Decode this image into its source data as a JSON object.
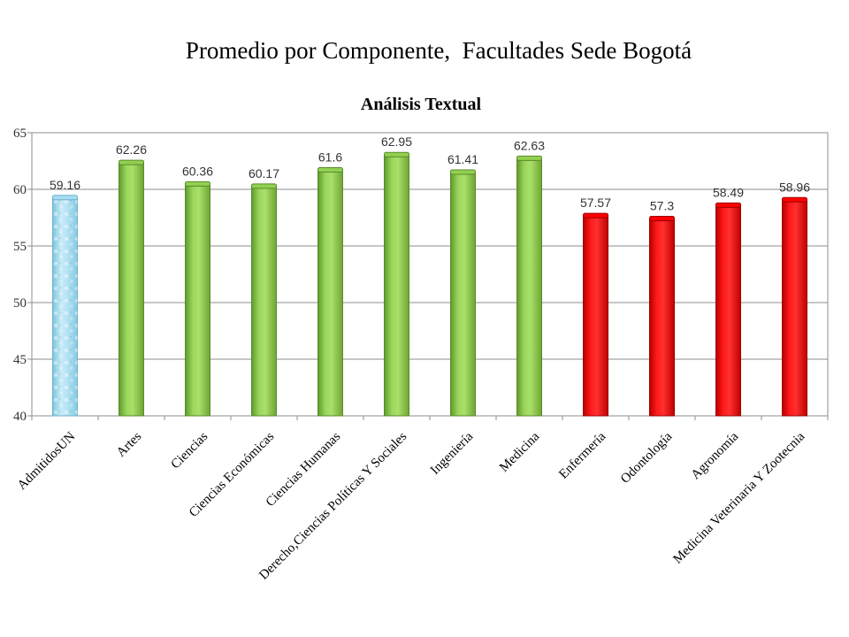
{
  "slide": {
    "title": "Promedio por Componente,  Facultades Sede Bogotá"
  },
  "chart_data": {
    "type": "bar",
    "title": "Análisis Textual",
    "xlabel": "",
    "ylabel": "",
    "ylim": [
      40,
      65
    ],
    "yticks": [
      40,
      45,
      50,
      55,
      60,
      65
    ],
    "grid": true,
    "legend": "none",
    "categories": [
      "AdmitidosUN",
      "Artes",
      "Ciencias",
      "Ciencias Económicas",
      "Ciencias Humanas",
      "Derecho,Ciencias Políticas Y Sociales",
      "Ingeniería",
      "Medicina",
      "Enfermería",
      "Odontología",
      "Agronomía",
      "Medicina Veterinaria Y Zootecnia"
    ],
    "values": [
      59.16,
      62.26,
      60.36,
      60.17,
      61.6,
      62.95,
      61.41,
      62.63,
      57.57,
      57.3,
      58.49,
      58.96
    ],
    "value_labels": [
      "59.16",
      "62.26",
      "60.36",
      "60.17",
      "61.6",
      "62.95",
      "61.41",
      "62.63",
      "57.57",
      "57.3",
      "58.49",
      "58.96"
    ],
    "bar_colors": [
      "#a8dcef",
      "#92d050",
      "#92d050",
      "#92d050",
      "#92d050",
      "#92d050",
      "#92d050",
      "#92d050",
      "#ff0000",
      "#ff0000",
      "#ff0000",
      "#ff0000"
    ]
  }
}
